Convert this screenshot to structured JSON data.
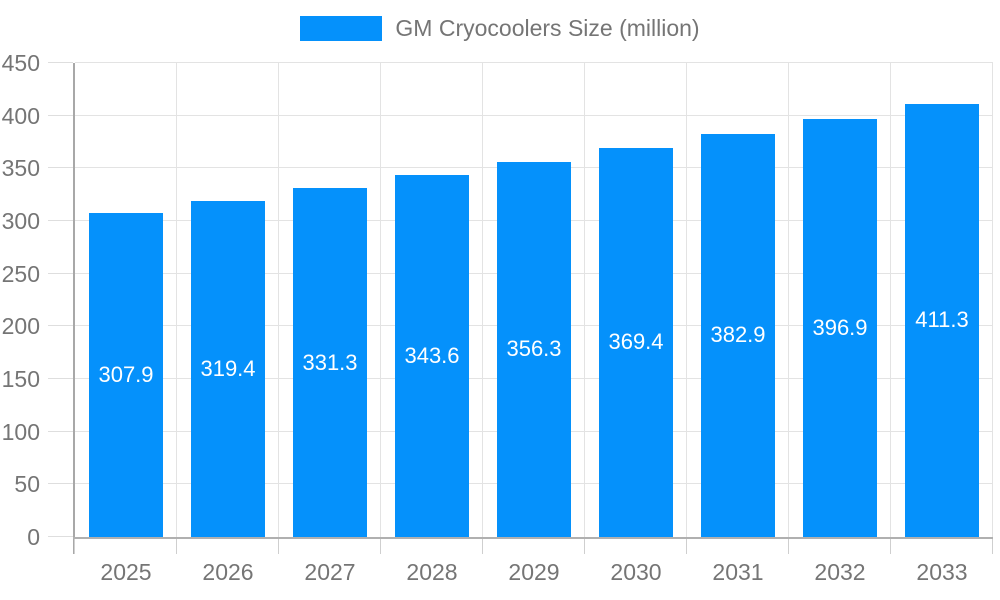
{
  "legend": {
    "label": "GM Cryocoolers Size (million)",
    "swatch_color": "#0591fb"
  },
  "colors": {
    "bar": "#0591fb",
    "axis_line": "#a8a8a8",
    "gridline": "#e3e3e3",
    "axis_label": "#757575",
    "value_label": "#ffffff",
    "background": "#ffffff"
  },
  "chart_data": {
    "type": "bar",
    "title": "GM Cryocoolers Size (million)",
    "series_name": "GM Cryocoolers Size (million)",
    "categories": [
      "2025",
      "2026",
      "2027",
      "2028",
      "2029",
      "2030",
      "2031",
      "2032",
      "2033"
    ],
    "values": [
      307.9,
      319.4,
      331.3,
      343.6,
      356.3,
      369.4,
      382.9,
      396.9,
      411.3
    ],
    "value_labels": [
      "307.9",
      "319.4",
      "331.3",
      "343.6",
      "356.3",
      "369.4",
      "382.9",
      "396.9",
      "411.3"
    ],
    "xlabel": "",
    "ylabel": "",
    "ylim": [
      0,
      450
    ],
    "ytick_step": 50,
    "yticks": [
      "0",
      "50",
      "100",
      "150",
      "200",
      "250",
      "300",
      "350",
      "400",
      "450"
    ],
    "grid": true,
    "legend_position": "top"
  }
}
